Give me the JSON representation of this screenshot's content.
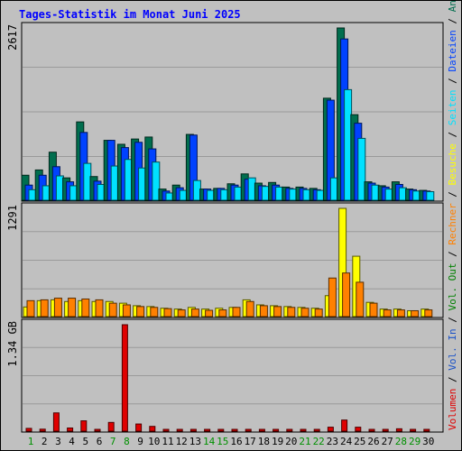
{
  "colors": {
    "background": "#c0c0c0",
    "panel_border": "#000000",
    "gridline": "#9a9a9a",
    "title": "#0000ff",
    "hits": "#006e4e",
    "files": "#0042ff",
    "pages": "#00e1ff",
    "visits": "#ffff00",
    "sites": "#ff8000",
    "kbytes": "#e00000",
    "separator": "#000000",
    "weekday": "#000000",
    "weekend": "#009000"
  },
  "chart_data": [
    {
      "type": "bar",
      "title": "Tages-Statistik im Monat Juni 2025",
      "panel": "top",
      "ymax_label": "2617",
      "ylim": [
        0,
        2617
      ],
      "categories": [
        "1",
        "2",
        "3",
        "4",
        "5",
        "6",
        "7",
        "8",
        "9",
        "10",
        "11",
        "12",
        "13",
        "14",
        "15",
        "16",
        "17",
        "18",
        "19",
        "20",
        "21",
        "22",
        "23",
        "24",
        "25",
        "26",
        "27",
        "28",
        "29",
        "30"
      ],
      "weekend_days": [
        "1",
        "7",
        "8",
        "14",
        "15",
        "21",
        "22",
        "28",
        "29"
      ],
      "series": [
        {
          "name": "Anfragen",
          "color": "#006e4e",
          "values": [
            380,
            460,
            730,
            340,
            1190,
            360,
            910,
            850,
            930,
            960,
            170,
            230,
            1000,
            170,
            180,
            250,
            400,
            260,
            270,
            200,
            200,
            180,
            1550,
            2617,
            1300,
            280,
            220,
            280,
            170,
            150
          ]
        },
        {
          "name": "Dateien",
          "color": "#0042ff",
          "values": [
            230,
            380,
            510,
            280,
            1030,
            290,
            910,
            800,
            880,
            780,
            140,
            190,
            990,
            170,
            180,
            230,
            320,
            220,
            230,
            180,
            180,
            160,
            1520,
            2450,
            1170,
            260,
            200,
            240,
            160,
            140
          ]
        },
        {
          "name": "Seiten",
          "color": "#00e1ff",
          "values": [
            160,
            220,
            370,
            220,
            560,
            240,
            520,
            620,
            490,
            580,
            110,
            150,
            300,
            150,
            160,
            200,
            340,
            210,
            200,
            170,
            160,
            150,
            340,
            1680,
            940,
            230,
            170,
            190,
            140,
            130
          ]
        }
      ]
    },
    {
      "type": "bar",
      "panel": "middle",
      "ymax_label": "1291",
      "ylim": [
        0,
        1291
      ],
      "categories": [
        "1",
        "2",
        "3",
        "4",
        "5",
        "6",
        "7",
        "8",
        "9",
        "10",
        "11",
        "12",
        "13",
        "14",
        "15",
        "16",
        "17",
        "18",
        "19",
        "20",
        "21",
        "22",
        "23",
        "24",
        "25",
        "26",
        "27",
        "28",
        "29",
        "30"
      ],
      "series": [
        {
          "name": "Besuche",
          "color": "#ffff00",
          "values": [
            115,
            190,
            200,
            180,
            190,
            180,
            180,
            160,
            130,
            120,
            100,
            90,
            110,
            90,
            100,
            110,
            200,
            140,
            130,
            120,
            110,
            100,
            250,
            1291,
            720,
            170,
            90,
            90,
            70,
            90
          ]
        },
        {
          "name": "Rechner",
          "color": "#ff8000",
          "values": [
            190,
            200,
            220,
            220,
            210,
            200,
            160,
            140,
            120,
            110,
            95,
            80,
            90,
            75,
            80,
            110,
            180,
            130,
            120,
            110,
            100,
            90,
            460,
            520,
            410,
            160,
            80,
            80,
            70,
            80
          ]
        }
      ]
    },
    {
      "type": "bar",
      "panel": "bottom",
      "ymax_label": "1.34 GB",
      "ylim": [
        0,
        1.34
      ],
      "categories": [
        "1",
        "2",
        "3",
        "4",
        "5",
        "6",
        "7",
        "8",
        "9",
        "10",
        "11",
        "12",
        "13",
        "14",
        "15",
        "16",
        "17",
        "18",
        "19",
        "20",
        "21",
        "22",
        "23",
        "24",
        "25",
        "26",
        "27",
        "28",
        "29",
        "30"
      ],
      "series": [
        {
          "name": "Volumen",
          "color": "#e00000",
          "values": [
            0.035,
            0.025,
            0.23,
            0.04,
            0.13,
            0.01,
            0.11,
            1.34,
            0.09,
            0.06,
            0.01,
            0.02,
            0.02,
            0.02,
            0.01,
            0.01,
            0.01,
            0.01,
            0.01,
            0.01,
            0.01,
            0.01,
            0.05,
            0.14,
            0.05,
            0.01,
            0.01,
            0.03,
            0.01,
            0.01
          ]
        }
      ]
    }
  ],
  "right_legend": [
    {
      "text": "Volumen",
      "color": "#e00000"
    },
    {
      "text": " / ",
      "color": "#000000"
    },
    {
      "text": "Vol. In",
      "color": "#1a52c8"
    },
    {
      "text": " / ",
      "color": "#000000"
    },
    {
      "text": "Vol. Out",
      "color": "#008000"
    },
    {
      "text": " / ",
      "color": "#000000"
    },
    {
      "text": "Rechner",
      "color": "#ff8000"
    },
    {
      "text": " / ",
      "color": "#000000"
    },
    {
      "text": "Besuche",
      "color": "#ffff00"
    },
    {
      "text": " / ",
      "color": "#000000"
    },
    {
      "text": "Seiten",
      "color": "#00e1ff"
    },
    {
      "text": " / ",
      "color": "#000000"
    },
    {
      "text": "Dateien",
      "color": "#0042ff"
    },
    {
      "text": " / ",
      "color": "#000000"
    },
    {
      "text": "Anfragen",
      "color": "#006e4e"
    }
  ]
}
